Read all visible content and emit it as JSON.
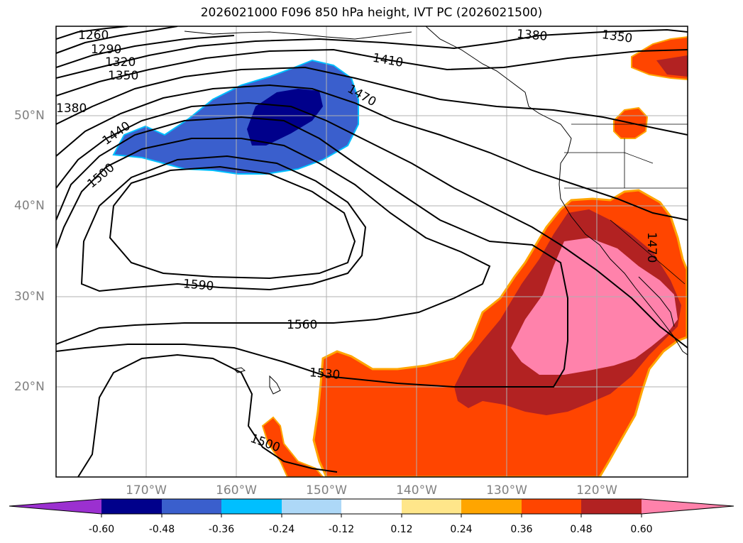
{
  "title": "2026021000 F096 850 hPa height, IVT PC (2026021500)",
  "map": {
    "lon_ticks": [
      "170°W",
      "160°W",
      "150°W",
      "140°W",
      "130°W",
      "120°W"
    ],
    "lat_ticks": [
      "50°N",
      "40°N",
      "30°N",
      "20°N"
    ],
    "contour_labels": [
      {
        "text": "1260",
        "rot": -12
      },
      {
        "text": "1290",
        "rot": -10
      },
      {
        "text": "1320",
        "rot": -10
      },
      {
        "text": "1350",
        "rot": -10
      },
      {
        "text": "1380",
        "rot": -12
      },
      {
        "text": "1440",
        "rot": -35
      },
      {
        "text": "1500",
        "rot": -40
      },
      {
        "text": "1410",
        "rot": 10
      },
      {
        "text": "1470",
        "rot": 30
      },
      {
        "text": "1380",
        "rot": 5
      },
      {
        "text": "1350",
        "rot": 8
      },
      {
        "text": "1590",
        "rot": 5
      },
      {
        "text": "1560",
        "rot": 0
      },
      {
        "text": "1530",
        "rot": 5
      },
      {
        "text": "1500",
        "rot": 20
      },
      {
        "text": "1470",
        "rot": 90
      }
    ]
  },
  "colorbar": {
    "levels": [
      "-0.60",
      "-0.48",
      "-0.36",
      "-0.24",
      "-0.12",
      "0.12",
      "0.24",
      "0.36",
      "0.48",
      "0.60"
    ],
    "colors": {
      "lt_-0.60": "#9b30d0",
      "-0.60_-0.48": "#00008b",
      "-0.48_-0.36": "#3a5fcd",
      "-0.36_-0.24": "#00bfff",
      "-0.24_-0.12": "#add8f7",
      "-0.12_0.12": "#ffffff",
      "0.12_0.24": "#ffe68a",
      "0.24_0.36": "#ffa500",
      "0.36_0.48": "#ff4500",
      "0.48_0.60": "#b22222",
      "gt_0.60": "#ff82ab"
    }
  }
}
